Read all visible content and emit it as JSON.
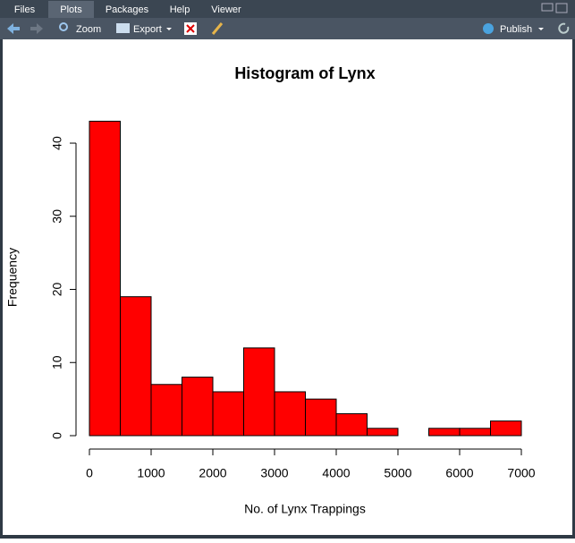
{
  "ui": {
    "tabs": [
      "Files",
      "Plots",
      "Packages",
      "Help",
      "Viewer"
    ],
    "active_tab": "Plots",
    "toolbar": {
      "zoom": "Zoom",
      "export": "Export",
      "publish": "Publish"
    }
  },
  "chart_data": {
    "type": "histogram",
    "title": "Histogram of Lynx",
    "x_label": "No. of Lynx Trappings",
    "y_label": "Frequency",
    "bins": [
      0,
      500,
      1000,
      1500,
      2000,
      2500,
      3000,
      3500,
      4000,
      4500,
      5000,
      5500,
      6000,
      6500,
      7000
    ],
    "counts": [
      43,
      19,
      7,
      8,
      6,
      12,
      6,
      5,
      3,
      1,
      0,
      1,
      1,
      2
    ],
    "color": "#ff0000",
    "xlim": [
      0,
      7000
    ],
    "xticks": [
      0,
      1000,
      2000,
      3000,
      4000,
      5000,
      6000,
      7000
    ],
    "ylim": [
      0,
      43
    ],
    "yticks": [
      0,
      10,
      20,
      30,
      40
    ]
  }
}
